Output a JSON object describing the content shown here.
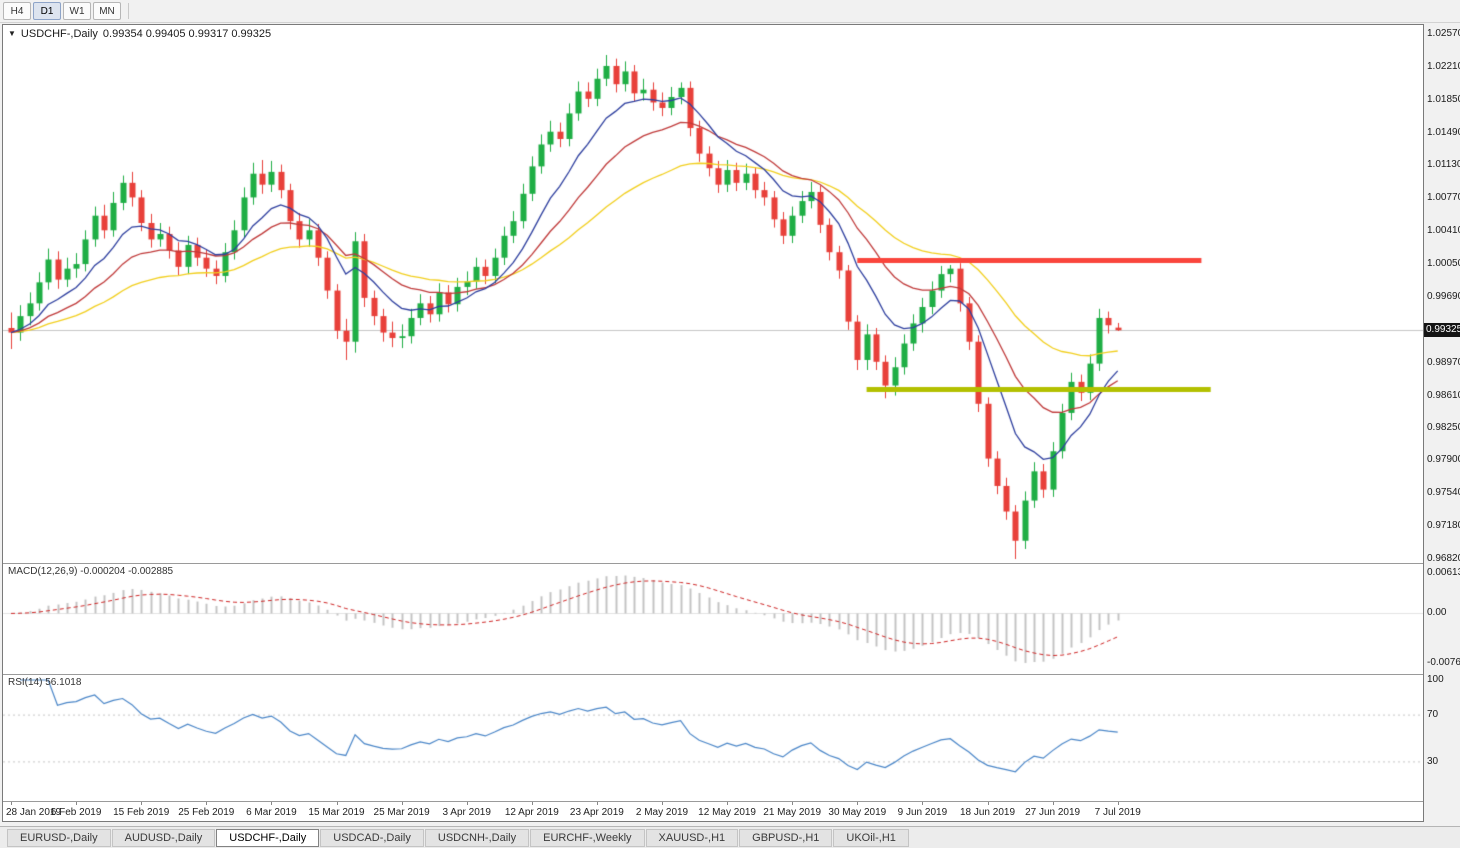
{
  "toolbar": {
    "timeframes": [
      "H4",
      "D1",
      "W1",
      "MN"
    ],
    "active": "D1"
  },
  "chart": {
    "symbol": "USDCHF-,Daily",
    "ohlc": "0.99354 0.99405 0.99317 0.99325",
    "current_price": "0.99325"
  },
  "macd": {
    "label": "MACD(12,26,9) -0.000204 -0.002885"
  },
  "rsi": {
    "label": "RSI(14) 56.1018"
  },
  "price_axis": {
    "main_ticks": [
      "1.02570",
      "1.02210",
      "1.01850",
      "1.01490",
      "1.01130",
      "1.00770",
      "1.00410",
      "1.00050",
      "0.99690",
      "0.99330",
      "0.98970",
      "0.98610",
      "0.98250",
      "0.97900",
      "0.97540",
      "0.97180",
      "0.96820"
    ],
    "macd_ticks": [
      "0.00613",
      "0.00",
      "-0.00761"
    ],
    "rsi_ticks": [
      "100",
      "70",
      "30"
    ]
  },
  "time_axis": {
    "labels": [
      "28 Jan 2019",
      "6 Feb 2019",
      "15 Feb 2019",
      "25 Feb 2019",
      "6 Mar 2019",
      "15 Mar 2019",
      "25 Mar 2019",
      "3 Apr 2019",
      "12 Apr 2019",
      "23 Apr 2019",
      "2 May 2019",
      "12 May 2019",
      "21 May 2019",
      "30 May 2019",
      "9 Jun 2019",
      "18 Jun 2019",
      "27 Jun 2019",
      "7 Jul 2019"
    ],
    "bar_step": 7
  },
  "tabs": {
    "items": [
      {
        "label": "EURUSD-,Daily",
        "active": false
      },
      {
        "label": "AUDUSD-,Daily",
        "active": false
      },
      {
        "label": "USDCHF-,Daily",
        "active": true
      },
      {
        "label": "USDCAD-,Daily",
        "active": false
      },
      {
        "label": "USDCNH-,Daily",
        "active": false
      },
      {
        "label": "EURCHF-,Weekly",
        "active": false
      },
      {
        "label": "XAUUSD-,H1",
        "active": false
      },
      {
        "label": "GBPUSD-,H1",
        "active": false
      },
      {
        "label": "UKOil-,H1",
        "active": false
      }
    ]
  },
  "colors": {
    "candle_up": "#1fae45",
    "candle_down": "#e8403a",
    "ma_fast": "#2e3f9f",
    "ma_mid": "#c03a3a",
    "ma_slow": "#f2cf1d",
    "resistance_line": "#fa453c",
    "support_line": "#b3c000",
    "macd_hist": "#c4c4c4",
    "macd_signal": "#cf2525",
    "rsi_line": "#4a86c8",
    "current_price_line": "#c6c6c6"
  },
  "chart_data": {
    "type": "candlestick",
    "symbol": "USDCHF",
    "timeframe": "Daily",
    "ylim": [
      0.9682,
      1.0257
    ],
    "current_bar": {
      "open": "0.99354",
      "high": "0.99405",
      "low": "0.99317",
      "close": "0.99325"
    },
    "moving_averages": [
      {
        "name": "fast",
        "period": 9,
        "color": "#2e3f9f"
      },
      {
        "name": "mid",
        "period": 18,
        "color": "#c03a3a"
      },
      {
        "name": "slow",
        "period": 36,
        "color": "#f2cf1d"
      }
    ],
    "indicators": [
      {
        "name": "MACD",
        "fast": 12,
        "slow": 26,
        "signal": 9,
        "values_label": "-0.000204 -0.002885"
      },
      {
        "name": "RSI",
        "period": 14,
        "value": 56.1018,
        "levels": [
          70,
          30
        ]
      }
    ],
    "lines": [
      {
        "type": "resistance",
        "price": 1.001,
        "color": "#fa453c",
        "from_bar": 91,
        "to_bar": 128
      },
      {
        "type": "support",
        "price": 0.9868,
        "color": "#b3c000",
        "from_bar": 92,
        "to_bar": 129
      }
    ],
    "candles": [
      [
        0.9935,
        0.9952,
        0.9912,
        0.993
      ],
      [
        0.993,
        0.996,
        0.9921,
        0.9948
      ],
      [
        0.9948,
        0.9974,
        0.9938,
        0.9962
      ],
      [
        0.9962,
        0.9996,
        0.9954,
        0.9985
      ],
      [
        0.9985,
        1.0022,
        0.9977,
        1.001
      ],
      [
        1.001,
        1.0019,
        0.9978,
        0.9988
      ],
      [
        0.9988,
        1.0012,
        0.998,
        1.0
      ],
      [
        1.0,
        1.0017,
        0.999,
        1.0005
      ],
      [
        1.0005,
        1.0042,
        0.9997,
        1.0032
      ],
      [
        1.0032,
        1.0068,
        1.0024,
        1.0058
      ],
      [
        1.0058,
        1.007,
        1.0033,
        1.0042
      ],
      [
        1.0042,
        1.0084,
        1.0035,
        1.0072
      ],
      [
        1.0072,
        1.0102,
        1.0064,
        1.0094
      ],
      [
        1.0094,
        1.0106,
        1.0068,
        1.0078
      ],
      [
        1.0078,
        1.0086,
        1.0041,
        1.005
      ],
      [
        1.005,
        1.006,
        1.0023,
        1.0032
      ],
      [
        1.0032,
        1.005,
        1.0024,
        1.0038
      ],
      [
        1.0038,
        1.0046,
        1.0011,
        1.002
      ],
      [
        1.002,
        1.0029,
        0.9993,
        1.0002
      ],
      [
        1.0002,
        1.0036,
        0.9994,
        1.0026
      ],
      [
        1.0026,
        1.0034,
        1.0003,
        1.0012
      ],
      [
        1.0012,
        1.0021,
        0.9991,
        1.0
      ],
      [
        1.0,
        1.0009,
        0.9983,
        0.9992
      ],
      [
        0.9992,
        1.0028,
        0.9985,
        1.0018
      ],
      [
        1.0018,
        1.0053,
        1.001,
        1.0042
      ],
      [
        1.0042,
        1.0089,
        1.0034,
        1.0078
      ],
      [
        1.0078,
        1.0116,
        1.007,
        1.0104
      ],
      [
        1.0104,
        1.0119,
        1.0082,
        1.0092
      ],
      [
        1.0092,
        1.0118,
        1.0084,
        1.0106
      ],
      [
        1.0106,
        1.0114,
        1.0077,
        1.0086
      ],
      [
        1.0086,
        1.0093,
        1.0043,
        1.0052
      ],
      [
        1.0052,
        1.0061,
        1.0023,
        1.0032
      ],
      [
        1.0032,
        1.0054,
        1.0024,
        1.0042
      ],
      [
        1.0042,
        1.0049,
        1.0003,
        1.0012
      ],
      [
        1.0012,
        1.0019,
        0.9967,
        0.9976
      ],
      [
        0.9976,
        0.9983,
        0.9923,
        0.9932
      ],
      [
        0.9932,
        0.9945,
        0.99,
        0.992
      ],
      [
        0.992,
        1.004,
        0.9908,
        1.003
      ],
      [
        1.003,
        1.0038,
        0.9958,
        0.9968
      ],
      [
        0.9968,
        0.9976,
        0.9938,
        0.9948
      ],
      [
        0.9948,
        0.9956,
        0.992,
        0.993
      ],
      [
        0.993,
        0.9942,
        0.9914,
        0.9924
      ],
      [
        0.9924,
        0.9939,
        0.9913,
        0.9926
      ],
      [
        0.9926,
        0.9956,
        0.9918,
        0.9946
      ],
      [
        0.9946,
        0.9972,
        0.9938,
        0.9962
      ],
      [
        0.9962,
        0.997,
        0.9941,
        0.995
      ],
      [
        0.995,
        0.9984,
        0.9942,
        0.9974
      ],
      [
        0.9974,
        0.9982,
        0.9952,
        0.9961
      ],
      [
        0.9961,
        0.999,
        0.9953,
        0.998
      ],
      [
        0.998,
        0.9997,
        0.9971,
        0.9986
      ],
      [
        0.9986,
        1.0012,
        0.9978,
        1.0002
      ],
      [
        1.0002,
        1.001,
        0.9983,
        0.9992
      ],
      [
        0.9992,
        1.0022,
        0.9984,
        1.0012
      ],
      [
        1.0012,
        1.0046,
        1.0004,
        1.0036
      ],
      [
        1.0036,
        1.0063,
        1.0028,
        1.0052
      ],
      [
        1.0052,
        1.0093,
        1.0044,
        1.0082
      ],
      [
        1.0082,
        1.0123,
        1.0074,
        1.0112
      ],
      [
        1.0112,
        1.0147,
        1.0104,
        1.0136
      ],
      [
        1.0136,
        1.0162,
        1.0128,
        1.015
      ],
      [
        1.015,
        1.016,
        1.0133,
        1.0142
      ],
      [
        1.0142,
        1.0181,
        1.0134,
        1.017
      ],
      [
        1.017,
        1.0205,
        1.0162,
        1.0194
      ],
      [
        1.0194,
        1.0204,
        1.0177,
        1.0186
      ],
      [
        1.0186,
        1.0219,
        1.0178,
        1.0208
      ],
      [
        1.0208,
        1.0234,
        1.02,
        1.0222
      ],
      [
        1.0222,
        1.023,
        1.0193,
        1.0202
      ],
      [
        1.0202,
        1.0227,
        1.0194,
        1.0216
      ],
      [
        1.0216,
        1.0223,
        1.0183,
        1.0192
      ],
      [
        1.0192,
        1.0208,
        1.0184,
        1.0196
      ],
      [
        1.0196,
        1.0204,
        1.0173,
        1.0182
      ],
      [
        1.0182,
        1.0193,
        1.0167,
        1.0176
      ],
      [
        1.0176,
        1.0199,
        1.0168,
        1.0188
      ],
      [
        1.0188,
        1.0204,
        1.018,
        1.0198
      ],
      [
        1.0198,
        1.0205,
        1.0145,
        1.0154
      ],
      [
        1.0154,
        1.0162,
        1.0117,
        1.0126
      ],
      [
        1.0126,
        1.0134,
        1.0101,
        1.011
      ],
      [
        1.011,
        1.0118,
        1.0083,
        1.0092
      ],
      [
        1.0092,
        1.0119,
        1.0084,
        1.0108
      ],
      [
        1.0108,
        1.0116,
        1.0085,
        1.0094
      ],
      [
        1.0094,
        1.0115,
        1.0086,
        1.0104
      ],
      [
        1.0104,
        1.0111,
        1.0077,
        1.0086
      ],
      [
        1.0086,
        1.0095,
        1.0069,
        1.0078
      ],
      [
        1.0078,
        1.0085,
        1.0045,
        1.0054
      ],
      [
        1.0054,
        1.0062,
        1.0027,
        1.0036
      ],
      [
        1.0036,
        1.0068,
        1.0028,
        1.0058
      ],
      [
        1.0058,
        1.0085,
        1.005,
        1.0074
      ],
      [
        1.0074,
        1.0095,
        1.0066,
        1.0084
      ],
      [
        1.0084,
        1.0091,
        1.0039,
        1.0048
      ],
      [
        1.0048,
        1.0055,
        1.0009,
        1.0018
      ],
      [
        1.0018,
        1.0025,
        0.9989,
        0.9998
      ],
      [
        0.9998,
        1.0004,
        0.9933,
        0.9942
      ],
      [
        0.9942,
        0.9949,
        0.9889,
        0.99
      ],
      [
        0.99,
        0.9939,
        0.9889,
        0.9928
      ],
      [
        0.9928,
        0.9935,
        0.9889,
        0.9898
      ],
      [
        0.9898,
        0.9905,
        0.9858,
        0.9872
      ],
      [
        0.9872,
        0.9903,
        0.9861,
        0.9892
      ],
      [
        0.9892,
        0.9928,
        0.9884,
        0.9918
      ],
      [
        0.9918,
        0.995,
        0.991,
        0.994
      ],
      [
        0.994,
        0.9968,
        0.993,
        0.9958
      ],
      [
        0.9958,
        0.9986,
        0.995,
        0.9976
      ],
      [
        0.9976,
        1.0003,
        0.9968,
        0.9994
      ],
      [
        0.9994,
        1.0004,
        0.9985,
        1.0
      ],
      [
        1.0,
        1.0006,
        0.9953,
        0.9962
      ],
      [
        0.9962,
        0.9969,
        0.9911,
        0.992
      ],
      [
        0.992,
        0.9927,
        0.9843,
        0.9852
      ],
      [
        0.9852,
        0.9859,
        0.9783,
        0.9792
      ],
      [
        0.9792,
        0.98,
        0.9753,
        0.9762
      ],
      [
        0.9762,
        0.9771,
        0.9725,
        0.9734
      ],
      [
        0.9734,
        0.9741,
        0.9682,
        0.9702
      ],
      [
        0.9702,
        0.9756,
        0.9693,
        0.9746
      ],
      [
        0.9746,
        0.9788,
        0.9738,
        0.9778
      ],
      [
        0.9778,
        0.9786,
        0.9749,
        0.9758
      ],
      [
        0.9758,
        0.981,
        0.975,
        0.98
      ],
      [
        0.98,
        0.9852,
        0.9792,
        0.9842
      ],
      [
        0.9842,
        0.9886,
        0.9834,
        0.9876
      ],
      [
        0.9876,
        0.9884,
        0.9855,
        0.9864
      ],
      [
        0.9864,
        0.9906,
        0.9856,
        0.9896
      ],
      [
        0.9896,
        0.9956,
        0.9888,
        0.9946
      ],
      [
        0.9946,
        0.9953,
        0.9929,
        0.9938
      ],
      [
        0.99354,
        0.99405,
        0.99317,
        0.99325
      ]
    ]
  }
}
